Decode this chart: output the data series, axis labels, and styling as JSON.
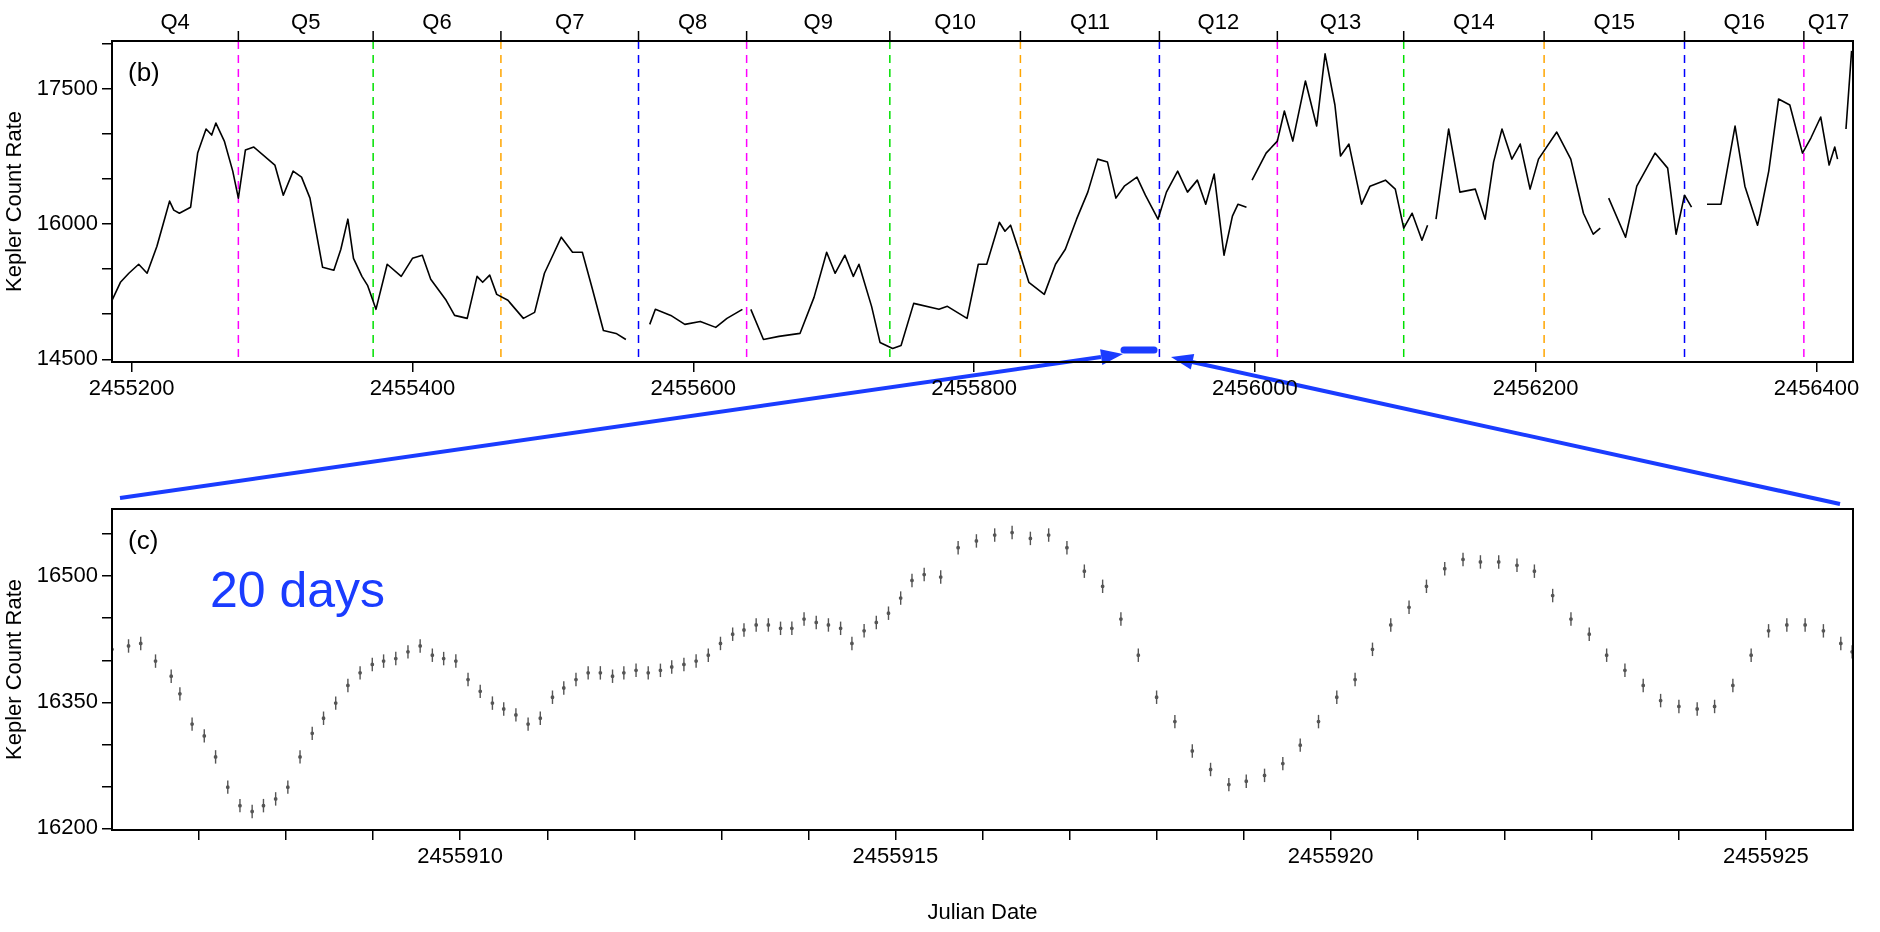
{
  "chart_data": [
    {
      "type": "line",
      "ylabel": "Kepler Count Rate",
      "annotations": [
        "(b)",
        "Q4"
      ],
      "color": "#000000",
      "marker": "none",
      "line_style": "solid",
      "x": [
        2455186,
        2455192,
        2455198,
        2455205,
        2455211,
        2455218,
        2455224,
        2455227,
        2455230,
        2455234,
        2455242,
        2455247,
        2455253,
        2455257,
        2455260,
        2455266,
        2455272,
        2455276,
        2455281,
        2455287,
        2455302,
        2455308,
        2455315,
        2455321,
        2455327,
        2455336,
        2455344,
        2455349,
        2455354,
        2455358,
        2455364,
        2455368,
        2455374,
        2455382,
        2455392,
        2455400,
        2455407,
        2455413,
        2455424,
        2455430,
        2455439,
        2455446,
        2455450,
        2455455,
        2455460,
        2455468,
        2455479,
        2455487,
        2455494,
        2455500,
        2455506,
        2455514,
        2455521,
        2455528,
        2455536,
        2455545,
        2455552,
        2455560,
        2455569,
        2455573,
        2455584,
        2455594,
        2455605,
        2455616,
        2455624,
        2455635,
        2455638,
        2455641,
        2455650,
        2455661,
        2455676,
        2455686,
        2455695,
        2455701,
        2455708,
        2455714,
        2455718,
        2455727,
        2455733,
        2455742,
        2455748,
        2455757,
        2455775,
        2455781,
        2455795,
        2455803,
        2455809,
        2455818,
        2455822,
        2455826,
        2455833,
        2455839,
        2455850,
        2455858,
        2455865,
        2455873,
        2455881,
        2455888,
        2455895,
        2455901,
        2455907,
        2455916,
        2455922,
        2455931,
        2455937,
        2455945,
        2455952,
        2455959,
        2455965,
        2455971,
        2455978,
        2455984,
        2455988,
        2455994,
        2455996,
        2455998,
        2456008,
        2456016,
        2456021,
        2456027,
        2456036,
        2456044,
        2456050,
        2456057,
        2456061,
        2456067,
        2456076,
        2456082,
        2456093,
        2456100,
        2456106,
        2456112,
        2456119,
        2456123,
        2456126,
        2456129,
        2456138,
        2456146,
        2456157,
        2456164,
        2456170,
        2456176,
        2456183,
        2456189,
        2456196,
        2456202,
        2456215,
        2456225,
        2456234,
        2456241,
        2456246,
        2456249,
        2456252,
        2456264,
        2456272,
        2456285,
        2456294,
        2456300,
        2456306,
        2456311,
        2456316,
        2456322,
        2456332,
        2456342,
        2456349,
        2456358,
        2456360,
        2456366,
        2456373,
        2456381,
        2456390,
        2456396,
        2456403,
        2456409,
        2456413,
        2456415,
        2456418,
        2456421,
        2456425
      ],
      "values": [
        15154,
        15354,
        15454,
        15554,
        15454,
        15754,
        16087,
        16254,
        16154,
        16120,
        16187,
        16787,
        17054,
        16987,
        17120,
        16920,
        16587,
        16287,
        16820,
        16854,
        16654,
        16320,
        16587,
        16520,
        16287,
        15520,
        15487,
        15720,
        16054,
        15620,
        15420,
        15320,
        15054,
        15554,
        15420,
        15620,
        15654,
        15387,
        15154,
        14987,
        14954,
        15420,
        15354,
        15434,
        15220,
        15154,
        14954,
        15020,
        15454,
        15654,
        15854,
        15687,
        15687,
        15287,
        14820,
        14787,
        14720,
        null,
        14887,
        15054,
        14987,
        14887,
        14920,
        14854,
        14954,
        15054,
        null,
        15054,
        14720,
        14754,
        14787,
        15187,
        15687,
        15454,
        15654,
        15420,
        15554,
        15087,
        14687,
        14620,
        14654,
        15120,
        15054,
        15087,
        14954,
        15554,
        15554,
        16020,
        15920,
        15987,
        15654,
        15354,
        15220,
        15554,
        15720,
        16054,
        16354,
        16720,
        16687,
        16287,
        16420,
        16520,
        16320,
        16054,
        16354,
        16587,
        16354,
        16487,
        16220,
        16554,
        15654,
        16087,
        16220,
        16187,
        null,
        16487,
        16787,
        16920,
        17254,
        16920,
        17587,
        17087,
        17887,
        17320,
        16754,
        16887,
        16220,
        16420,
        16487,
        16387,
        15954,
        16120,
        15820,
        15987,
        null,
        16054,
        17054,
        16354,
        16387,
        16054,
        16687,
        17054,
        16720,
        16887,
        16387,
        16720,
        17020,
        16720,
        16120,
        15887,
        15954,
        null,
        16287,
        15854,
        16420,
        16787,
        16620,
        15887,
        16320,
        16187,
        null,
        16220,
        16220,
        17087,
        16420,
        15987,
        16120,
        16587,
        17387,
        17320,
        16787,
        16954,
        17187,
        16654,
        16854,
        16720,
        null,
        17054,
        17920
      ],
      "xlim": [
        2455186,
        2456426
      ],
      "xticks": [
        2455200,
        2455400,
        2455600,
        2455800,
        2456000,
        2456200,
        2456400
      ],
      "ylim": [
        14470,
        18030
      ],
      "yticks": [
        {
          "value": 18000,
          "label": null
        },
        17500,
        {
          "value": 17000,
          "label": null
        },
        {
          "value": 16500,
          "label": null
        },
        16000,
        {
          "value": 15500,
          "label": null
        },
        {
          "value": 15000,
          "label": null
        },
        14500
      ],
      "ref_lines": [
        {
          "axis": "x",
          "value": 2455276,
          "label": "Q5",
          "color": "#ff00ff",
          "line_style": "dashed"
        },
        {
          "axis": "x",
          "value": 2455372,
          "label": "Q6",
          "color": "#00e000",
          "line_style": "dashed"
        },
        {
          "axis": "x",
          "value": 2455463,
          "label": "Q7",
          "color": "#ffa500",
          "line_style": "dashed"
        },
        {
          "axis": "x",
          "value": 2455561,
          "label": "Q8",
          "color": "#0000ff",
          "line_style": "dashed"
        },
        {
          "axis": "x",
          "value": 2455638,
          "label": "Q9",
          "color": "#ff00ff",
          "line_style": "dashed"
        },
        {
          "axis": "x",
          "value": 2455740,
          "label": "Q10",
          "color": "#00e000",
          "line_style": "dashed"
        },
        {
          "axis": "x",
          "value": 2455833,
          "label": "Q11",
          "color": "#ffa500",
          "line_style": "dashed"
        },
        {
          "axis": "x",
          "value": 2455932,
          "label": "Q12",
          "color": "#0000ff",
          "line_style": "dashed"
        },
        {
          "axis": "x",
          "value": 2456016,
          "label": "Q13",
          "color": "#ff00ff",
          "line_style": "dashed"
        },
        {
          "axis": "x",
          "value": 2456106,
          "label": "Q14",
          "color": "#00e000",
          "line_style": "dashed"
        },
        {
          "axis": "x",
          "value": 2456206,
          "label": "Q15",
          "color": "#ffa500",
          "line_style": "dashed"
        },
        {
          "axis": "x",
          "value": 2456306,
          "label": "Q16",
          "color": "#0000ff",
          "line_style": "dashed"
        },
        {
          "axis": "x",
          "value": 2456391,
          "label": "Q17",
          "color": "#ff00ff",
          "line_style": "dashed"
        }
      ]
    },
    {
      "type": "scatter",
      "xlabel": "Julian Date",
      "ylabel": "Kepler Count Rate",
      "annotations": [
        "(c)",
        "20 days"
      ],
      "color": "#555555",
      "marker": "circle",
      "x": [
        2455906.0,
        2455906.19,
        2455906.33,
        2455906.5,
        2455906.68,
        2455906.78,
        2455906.92,
        2455907.06,
        2455907.19,
        2455907.33,
        2455907.47,
        2455907.61,
        2455907.74,
        2455907.88,
        2455908.02,
        2455908.16,
        2455908.3,
        2455908.43,
        2455908.57,
        2455908.71,
        2455908.85,
        2455908.99,
        2455909.12,
        2455909.26,
        2455909.4,
        2455909.54,
        2455909.68,
        2455909.81,
        2455909.95,
        2455910.09,
        2455910.23,
        2455910.37,
        2455910.5,
        2455910.64,
        2455910.78,
        2455910.92,
        2455911.06,
        2455911.19,
        2455911.33,
        2455911.47,
        2455911.61,
        2455911.75,
        2455911.88,
        2455912.02,
        2455912.16,
        2455912.3,
        2455912.43,
        2455912.57,
        2455912.71,
        2455912.85,
        2455912.99,
        2455913.13,
        2455913.26,
        2455913.4,
        2455913.54,
        2455913.68,
        2455913.81,
        2455913.95,
        2455914.09,
        2455914.23,
        2455914.37,
        2455914.5,
        2455914.64,
        2455914.78,
        2455914.92,
        2455915.06,
        2455915.19,
        2455915.33,
        2455915.52,
        2455915.72,
        2455915.93,
        2455916.14,
        2455916.34,
        2455916.55,
        2455916.76,
        2455916.97,
        2455917.17,
        2455917.38,
        2455917.59,
        2455917.79,
        2455918.0,
        2455918.21,
        2455918.41,
        2455918.62,
        2455918.83,
        2455919.03,
        2455919.24,
        2455919.45,
        2455919.65,
        2455919.86,
        2455920.07,
        2455920.28,
        2455920.48,
        2455920.69,
        2455920.9,
        2455921.1,
        2455921.31,
        2455921.52,
        2455921.72,
        2455921.93,
        2455922.14,
        2455922.34,
        2455922.55,
        2455922.76,
        2455922.97,
        2455923.17,
        2455923.38,
        2455923.59,
        2455923.79,
        2455924.0,
        2455924.21,
        2455924.41,
        2455924.62,
        2455924.83,
        2455925.03,
        2455925.24,
        2455925.45,
        2455925.66,
        2455925.86,
        2455925.99
      ],
      "values": [
        16413,
        16417,
        16420,
        16399,
        16381,
        16360,
        16324,
        16310,
        16285,
        16249,
        16227,
        16220,
        16227,
        16235,
        16249,
        16285,
        16313,
        16331,
        16349,
        16370,
        16385,
        16395,
        16399,
        16402,
        16410,
        16417,
        16406,
        16402,
        16399,
        16377,
        16363,
        16349,
        16342,
        16335,
        16324,
        16331,
        16356,
        16367,
        16377,
        16385,
        16385,
        16381,
        16385,
        16388,
        16385,
        16388,
        16392,
        16395,
        16399,
        16406,
        16420,
        16431,
        16436,
        16442,
        16442,
        16438,
        16438,
        16449,
        16445,
        16442,
        16438,
        16420,
        16435,
        16445,
        16456,
        16474,
        16495,
        16502,
        16499,
        16534,
        16542,
        16549,
        16552,
        16545,
        16549,
        16534,
        16506,
        16488,
        16449,
        16406,
        16356,
        16327,
        16292,
        16270,
        16252,
        16256,
        16263,
        16277,
        16299,
        16327,
        16356,
        16377,
        16413,
        16442,
        16463,
        16488,
        16509,
        16520,
        16517,
        16517,
        16513,
        16506,
        16477,
        16449,
        16431,
        16406,
        16388,
        16370,
        16352,
        16345,
        16342,
        16345,
        16370,
        16406,
        16435,
        16442,
        16442,
        16435,
        16420,
        16410
      ],
      "errors": [
        8,
        8,
        8,
        8,
        8,
        8,
        8,
        8,
        8,
        8,
        8,
        8,
        8,
        8,
        8,
        8,
        8,
        8,
        8,
        8,
        8,
        8,
        8,
        8,
        8,
        8,
        8,
        8,
        8,
        8,
        8,
        8,
        8,
        8,
        8,
        8,
        8,
        8,
        8,
        8,
        8,
        8,
        8,
        8,
        8,
        8,
        8,
        8,
        8,
        8,
        8,
        8,
        8,
        8,
        8,
        8,
        8,
        8,
        8,
        8,
        8,
        8,
        8,
        8,
        8,
        8,
        8,
        8,
        8,
        8,
        8,
        8,
        8,
        8,
        8,
        8,
        8,
        8,
        8,
        8,
        8,
        8,
        8,
        8,
        8,
        8,
        8,
        8,
        8,
        8,
        8,
        8,
        8,
        8,
        8,
        8,
        8,
        8,
        8,
        8,
        8,
        8,
        8,
        8,
        8,
        8,
        8,
        8,
        8,
        8,
        8,
        8,
        8,
        8,
        8,
        8,
        8,
        8,
        8,
        8
      ],
      "xlim": [
        2455906,
        2455926
      ],
      "xticks": [
        {
          "value": 2455907,
          "label": null
        },
        {
          "value": 2455908,
          "label": null
        },
        {
          "value": 2455909,
          "label": null
        },
        2455910,
        {
          "value": 2455911,
          "label": null
        },
        {
          "value": 2455912,
          "label": null
        },
        {
          "value": 2455913,
          "label": null
        },
        {
          "value": 2455914,
          "label": null
        },
        2455915,
        {
          "value": 2455916,
          "label": null
        },
        {
          "value": 2455917,
          "label": null
        },
        {
          "value": 2455918,
          "label": null
        },
        {
          "value": 2455919,
          "label": null
        },
        2455920,
        {
          "value": 2455921,
          "label": null
        },
        {
          "value": 2455922,
          "label": null
        },
        {
          "value": 2455923,
          "label": null
        },
        {
          "value": 2455924,
          "label": null
        },
        2455925
      ],
      "ylim": [
        16198,
        16580
      ],
      "yticks": [
        {
          "value": 16550,
          "label": null
        },
        16500,
        {
          "value": 16450,
          "label": null
        },
        {
          "value": 16400,
          "label": null
        },
        16350,
        {
          "value": 16300,
          "label": null
        },
        {
          "value": 16250,
          "label": null
        },
        16200
      ]
    }
  ]
}
